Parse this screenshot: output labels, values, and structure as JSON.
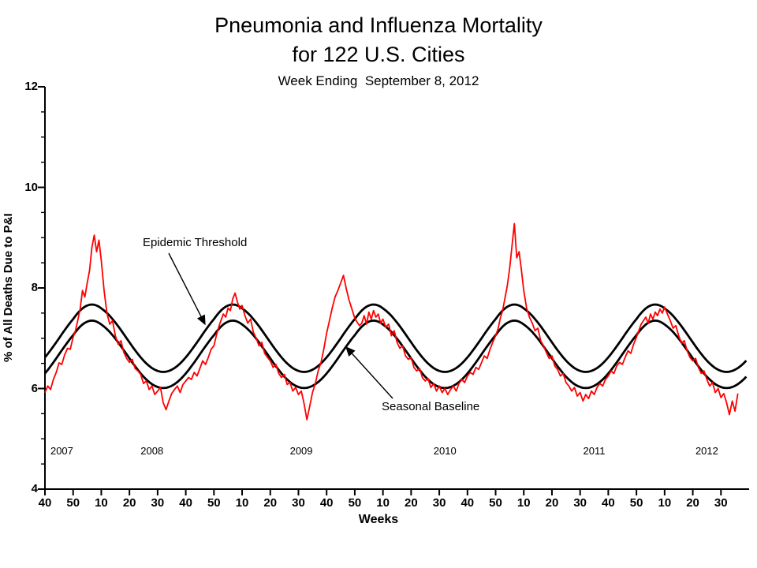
{
  "chart_data": {
    "type": "line",
    "title_line1": "Pneumonia and Influenza Mortality",
    "title_line2": "for 122 U.S. Cities",
    "subtitle": "Week Ending  September 8, 2012",
    "xlabel": "Weeks",
    "ylabel": "% of All Deaths Due to P&I",
    "ylim": [
      4,
      12
    ],
    "y_ticks": [
      4,
      6,
      8,
      10,
      12
    ],
    "y_minor_step": 0.5,
    "x_tick_labels": [
      "40",
      "50",
      "10",
      "20",
      "30",
      "40",
      "50",
      "10",
      "20",
      "30",
      "40",
      "50",
      "10",
      "20",
      "30",
      "40",
      "50",
      "10",
      "20",
      "30",
      "40",
      "50",
      "10",
      "20",
      "30"
    ],
    "year_labels": [
      {
        "text": "2007",
        "t": 6
      },
      {
        "text": "2008",
        "t": 40
      },
      {
        "text": "2009",
        "t": 95
      },
      {
        "text": "2010",
        "t": 148
      },
      {
        "text": "2011",
        "t": 203
      },
      {
        "text": "2012",
        "t": 245
      }
    ],
    "start_week": 40,
    "start_year": 2007,
    "weeks_per_year": 52,
    "series": [
      {
        "name": "Observed P&I mortality",
        "color": "#ff0000"
      },
      {
        "name": "Seasonal Baseline",
        "color": "#000000"
      },
      {
        "name": "Epidemic Threshold",
        "color": "#000000"
      }
    ],
    "baseline_model": {
      "mean": 6.68,
      "amplitude": 0.67,
      "period_weeks": 52,
      "peak_week": 6,
      "threshold_offset": 0.32
    },
    "annotations": [
      {
        "text": "Epidemic Threshold",
        "target": "threshold-curve"
      },
      {
        "text": "Seasonal Baseline",
        "target": "baseline-curve"
      }
    ],
    "observed": [
      5.92,
      6.05,
      5.98,
      6.18,
      6.32,
      6.51,
      6.48,
      6.67,
      6.8,
      6.78,
      7.02,
      7.15,
      7.36,
      7.58,
      7.95,
      7.82,
      8.1,
      8.35,
      8.8,
      9.05,
      8.72,
      8.95,
      8.55,
      7.95,
      7.5,
      7.28,
      7.35,
      7.05,
      6.88,
      6.95,
      6.72,
      6.6,
      6.52,
      6.58,
      6.4,
      6.35,
      6.28,
      6.1,
      6.15,
      5.98,
      6.05,
      5.88,
      5.95,
      6.02,
      5.72,
      5.58,
      5.75,
      5.9,
      5.98,
      6.05,
      5.92,
      6.08,
      6.15,
      6.22,
      6.18,
      6.32,
      6.25,
      6.4,
      6.55,
      6.48,
      6.62,
      6.78,
      6.85,
      7.05,
      7.22,
      7.35,
      7.48,
      7.42,
      7.6,
      7.55,
      7.78,
      7.9,
      7.72,
      7.58,
      7.65,
      7.45,
      7.3,
      7.38,
      7.12,
      7.0,
      6.85,
      6.92,
      6.7,
      6.62,
      6.55,
      6.42,
      6.48,
      6.3,
      6.22,
      6.28,
      6.08,
      6.12,
      5.95,
      6.02,
      5.88,
      5.95,
      5.7,
      5.38,
      5.65,
      5.92,
      6.1,
      6.35,
      6.52,
      6.78,
      7.1,
      7.35,
      7.6,
      7.82,
      7.95,
      8.1,
      8.25,
      7.98,
      7.75,
      7.58,
      7.4,
      7.32,
      7.25,
      7.3,
      7.45,
      7.28,
      7.52,
      7.38,
      7.55,
      7.42,
      7.48,
      7.3,
      7.38,
      7.22,
      7.28,
      7.05,
      7.15,
      6.92,
      6.8,
      6.85,
      6.65,
      6.58,
      6.62,
      6.42,
      6.35,
      6.4,
      6.22,
      6.15,
      6.2,
      6.02,
      6.1,
      5.95,
      6.05,
      5.92,
      6.0,
      5.88,
      5.98,
      6.05,
      5.95,
      6.1,
      6.18,
      6.12,
      6.25,
      6.32,
      6.28,
      6.42,
      6.38,
      6.52,
      6.65,
      6.6,
      6.78,
      6.92,
      7.05,
      7.18,
      7.4,
      7.55,
      7.8,
      8.05,
      8.4,
      8.85,
      9.28,
      8.6,
      8.72,
      8.35,
      7.95,
      7.6,
      7.42,
      7.3,
      7.15,
      7.2,
      6.95,
      6.85,
      6.72,
      6.6,
      6.65,
      6.45,
      6.38,
      6.25,
      6.3,
      6.12,
      6.05,
      5.95,
      6.02,
      5.85,
      5.92,
      5.75,
      5.88,
      5.8,
      5.95,
      5.88,
      6.02,
      6.1,
      6.05,
      6.18,
      6.25,
      6.35,
      6.3,
      6.45,
      6.52,
      6.48,
      6.62,
      6.75,
      6.7,
      6.88,
      7.02,
      7.15,
      7.28,
      7.35,
      7.42,
      7.3,
      7.48,
      7.38,
      7.52,
      7.45,
      7.58,
      7.5,
      7.62,
      7.48,
      7.35,
      7.2,
      7.25,
      7.05,
      6.9,
      6.95,
      6.75,
      6.62,
      6.55,
      6.6,
      6.42,
      6.3,
      6.35,
      6.18,
      6.05,
      6.12,
      5.92,
      6.0,
      5.82,
      5.9,
      5.72,
      5.48,
      5.75,
      5.55,
      5.9
    ]
  }
}
